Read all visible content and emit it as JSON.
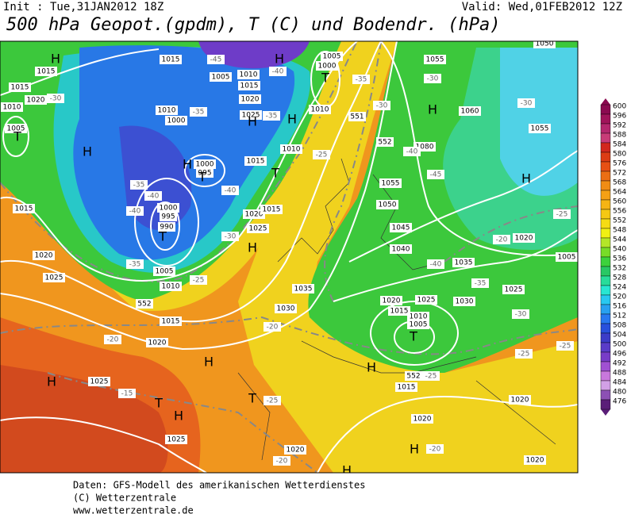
{
  "header": {
    "init": "Init : Tue,31JAN2012 18Z",
    "valid": "Valid: Wed,01FEB2012 12Z",
    "title": "500 hPa Geopot.(gpdm), T (C) und Bodendr. (hPa)"
  },
  "map": {
    "labels": [
      "H",
      "1015",
      "1015",
      "-30",
      "1020",
      "1010",
      "1005",
      "T",
      "H",
      "1015",
      "-45",
      "1005",
      "1010",
      "-40",
      "H",
      "1005",
      "1000",
      "T",
      "1010",
      "1015",
      "1020",
      "1025",
      "-35",
      "H",
      "H",
      "1010",
      "-35",
      "1000",
      "H",
      "1000",
      "995",
      "T",
      "-40",
      "-35",
      "-40",
      "-40",
      "1000",
      "995",
      "990",
      "T",
      "1015",
      "1020",
      "1025",
      "-35",
      "1005",
      "1010",
      "-30",
      "1020",
      "1015",
      "1025",
      "H",
      "T",
      "1010",
      "-25",
      "1015",
      "552",
      "-25",
      "1015",
      "1020",
      "-20",
      "-20",
      "1030",
      "1035",
      "H",
      "1025",
      "H",
      "-15",
      "T",
      "H",
      "1025",
      "T",
      "-25",
      "1020",
      "-20",
      "H",
      "1015",
      "H",
      "552",
      "-25",
      "1020",
      "H",
      "-20",
      "1020",
      "1020",
      "T",
      "1005",
      "1010",
      "1015",
      "1020",
      "1025",
      "1030",
      "-35",
      "1035",
      "-40",
      "1040",
      "1045",
      "1050",
      "1055",
      "1080",
      "552",
      "-45",
      "1060",
      "1055",
      "-30",
      "H",
      "-25",
      "-20",
      "1020",
      "1005",
      "1025",
      "-30",
      "-25",
      "-25",
      "H",
      "-30",
      "1055",
      "1050",
      "-35",
      "-30",
      "551",
      "-40"
    ]
  },
  "colorbar": {
    "labels": [
      600,
      596,
      592,
      588,
      584,
      580,
      576,
      572,
      568,
      564,
      560,
      556,
      552,
      548,
      544,
      540,
      536,
      532,
      528,
      524,
      520,
      516,
      512,
      508,
      504,
      500,
      496,
      492,
      488,
      484,
      480,
      476
    ],
    "colors": [
      "#8b0a50",
      "#a0145a",
      "#b4286e",
      "#c83c78",
      "#d2281e",
      "#dc3c14",
      "#e65014",
      "#eb6e14",
      "#f08c14",
      "#f5a014",
      "#f5b414",
      "#f5c814",
      "#f5dc14",
      "#f0f014",
      "#b4e628",
      "#78dc28",
      "#3cd23c",
      "#28c864",
      "#28dc9a",
      "#28e6d2",
      "#28c8f0",
      "#28a0f0",
      "#2878f0",
      "#2850dc",
      "#3c3cc8",
      "#5a3cc8",
      "#783cc8",
      "#a050d2",
      "#c878dc",
      "#d2a0e6",
      "#8c50b4",
      "#5a1e78"
    ]
  },
  "footer": {
    "lines": [
      "Daten: GFS-Modell des amerikanischen Wetterdienstes",
      "(C) Wetterzentrale",
      "www.wetterzentrale.de"
    ]
  }
}
